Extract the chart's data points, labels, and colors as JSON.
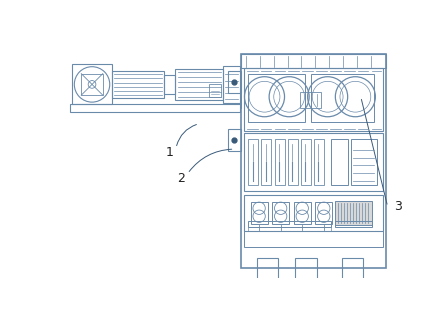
{
  "background_color": "#ffffff",
  "line_color": "#6a8aaa",
  "dark_line": "#3a5a7a",
  "label_color": "#222222",
  "figsize": [
    4.44,
    3.12
  ],
  "dpi": 100
}
